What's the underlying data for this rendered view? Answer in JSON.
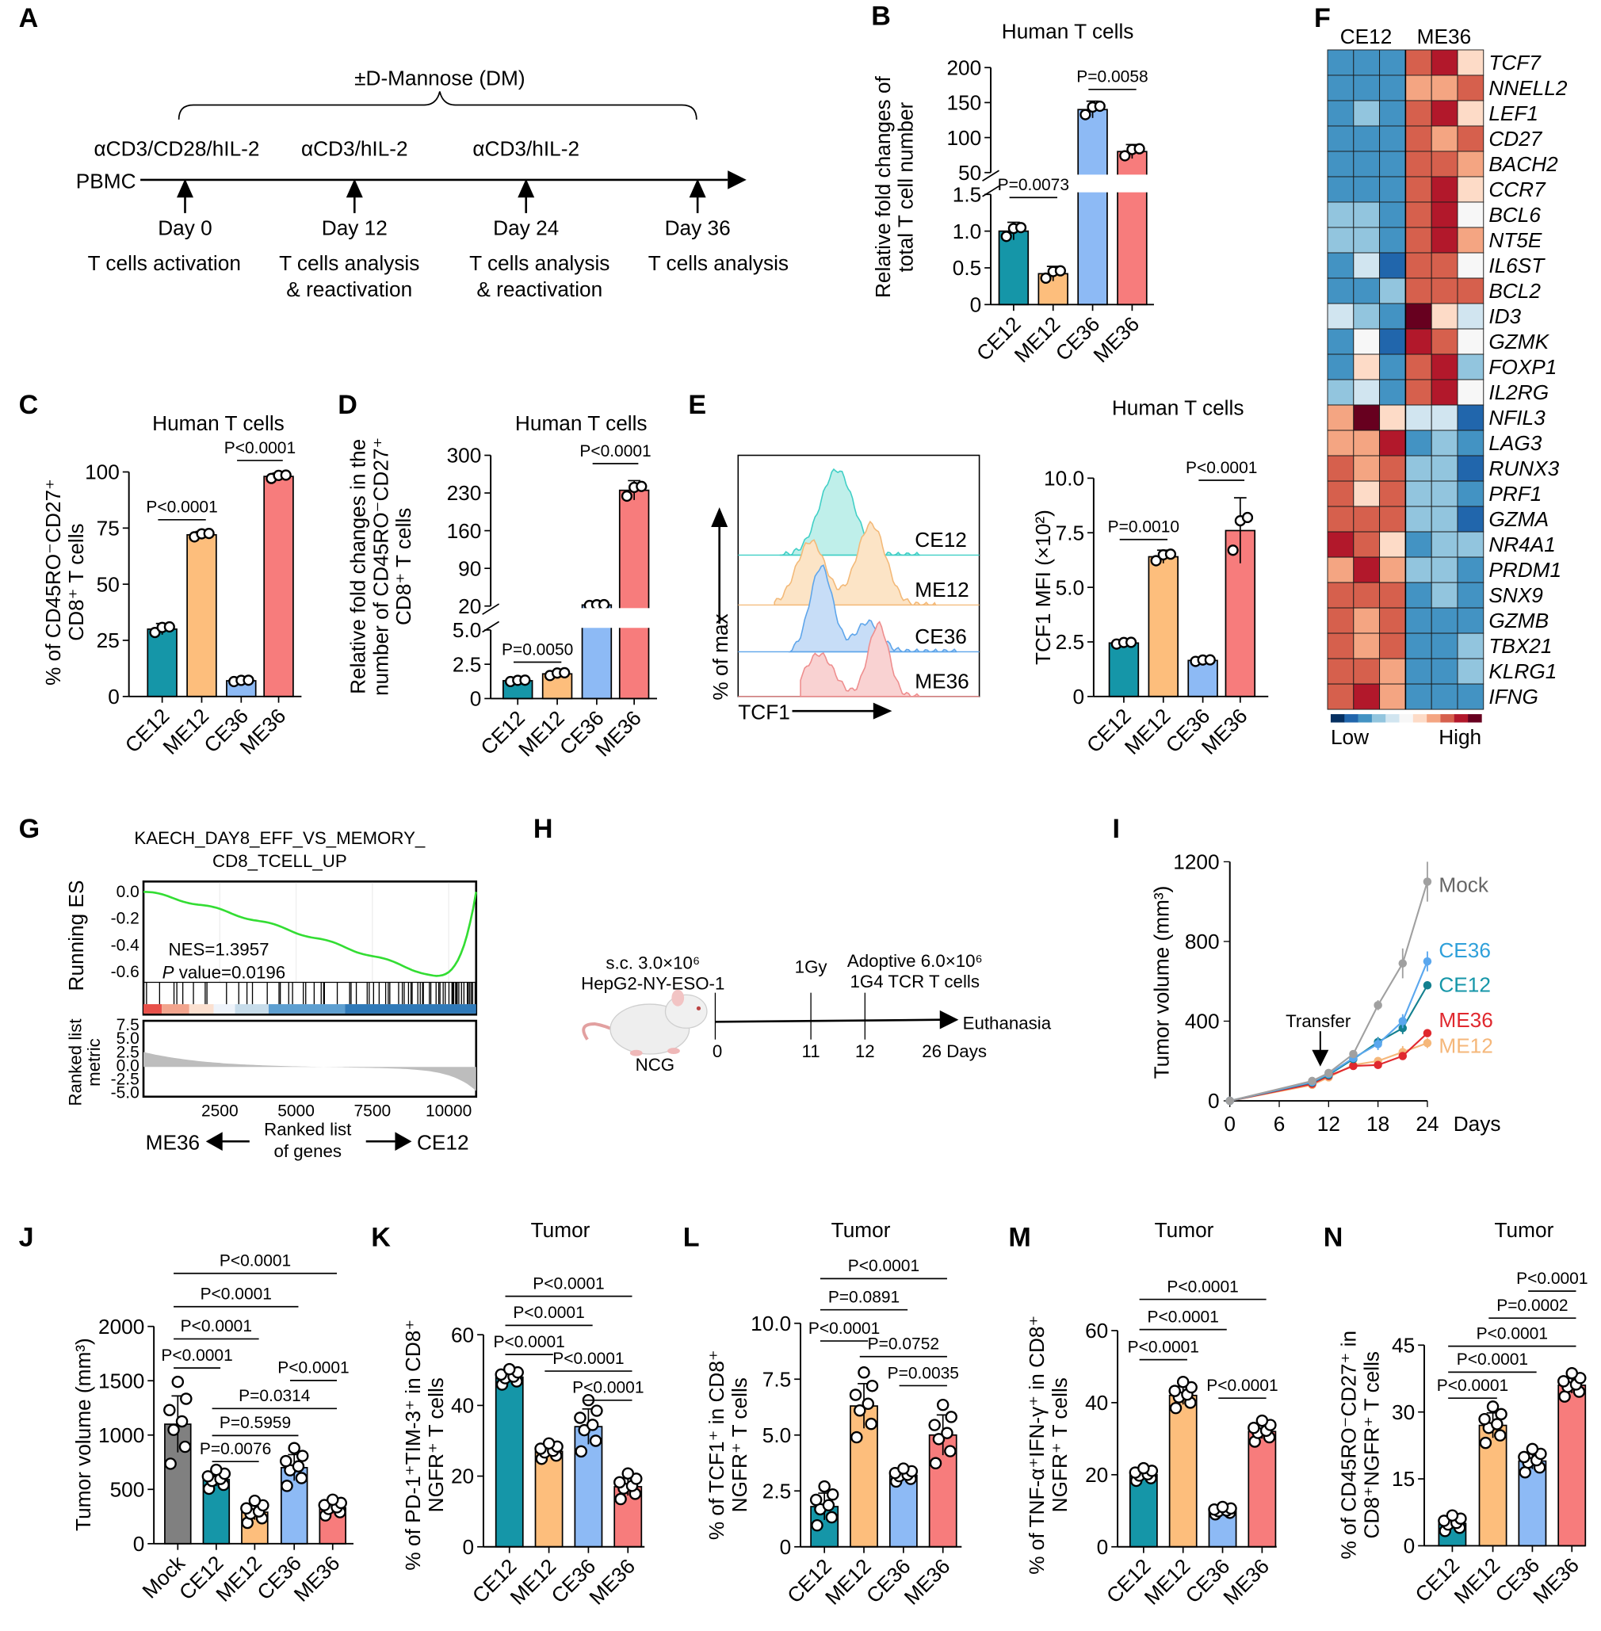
{
  "colors": {
    "CE12": "#1596A8",
    "ME12": "#FDBE7C",
    "CE36": "#8DBAF5",
    "ME36": "#F77C7C",
    "Mock": "#808080",
    "ME36_line": "#E0282E",
    "CE36_line": "#2FA0DA",
    "CE12_line": "#13808F",
    "ME12_line": "#F5B77A",
    "gsea_curve": "#33DD33"
  },
  "panelA": {
    "letter": "A",
    "dm_label": "±D-Mannose (DM)",
    "pbmc": "PBMC",
    "stimuli": [
      "αCD3/CD28/hIL-2",
      "αCD3/hIL-2",
      "αCD3/hIL-2"
    ],
    "days": [
      "Day 0",
      "Day 12",
      "Day 24",
      "Day 36"
    ],
    "events": [
      [
        "T cells activation",
        ""
      ],
      [
        "T cells analysis",
        "& reactivation"
      ],
      [
        "T cells analysis",
        "& reactivation"
      ],
      [
        "T cells analysis",
        ""
      ]
    ]
  },
  "panelE_flow": {
    "letter": "E",
    "samples": [
      "CE12",
      "ME12",
      "CE36",
      "ME36"
    ],
    "y_label": "% of max",
    "x_label": "TCF1"
  },
  "panelF": {
    "letter": "F"
  },
  "panelG": {
    "letter": "G"
  },
  "panelH": {
    "letter": "H",
    "cells": "s.c. 3.0×10⁶",
    "cell_line": "HepG2-NY-ESO-1",
    "irradiation": "1Gy",
    "adoptive": "Adoptive 6.0×10⁶",
    "tcr": "1G4 TCR T cells",
    "endpoint": "Euthanasia",
    "mouse": "NCG",
    "timepoints": [
      "0",
      "11",
      "12",
      "26 Days"
    ]
  },
  "chart_data": [
    {
      "id": "B",
      "letter": "B",
      "type": "bar",
      "title": "Human T cells",
      "ylabel": [
        "Relative fold changes of",
        "total T cell number"
      ],
      "categories": [
        "CE12",
        "ME12",
        "CE36",
        "ME36"
      ],
      "values": [
        1.0,
        0.42,
        140,
        80
      ],
      "sd": [
        0.12,
        0.1,
        12,
        10
      ],
      "n": 3,
      "y_segments": [
        [
          0,
          1.5
        ],
        [
          50,
          200
        ]
      ],
      "yticks": [
        [
          0,
          0.5,
          1.0,
          1.5
        ],
        [
          50,
          100,
          150,
          200
        ]
      ],
      "ytick_labels": [
        [
          "0",
          "0.5",
          "1.0",
          "1.5"
        ],
        [
          "50",
          "100",
          "150",
          "200"
        ]
      ],
      "brackets": [
        {
          "label": "P=0.0073",
          "from": 0,
          "to": 1
        },
        {
          "label": "P=0.0058",
          "from": 2,
          "to": 3
        }
      ]
    },
    {
      "id": "C",
      "letter": "C",
      "type": "bar",
      "title": "Human T cells",
      "ylabel": [
        "% of CD45RO⁻CD27⁺",
        "CD8⁺ T cells"
      ],
      "categories": [
        "CE12",
        "ME12",
        "CE36",
        "ME36"
      ],
      "values": [
        30,
        72,
        7,
        98
      ],
      "sd": [
        2.5,
        1.5,
        0.6,
        1.5
      ],
      "n": 3,
      "y_segments": [
        [
          0,
          100
        ]
      ],
      "yticks": [
        [
          0,
          25,
          50,
          75,
          100
        ]
      ],
      "ytick_labels": [
        [
          "0",
          "25",
          "50",
          "75",
          "100"
        ]
      ],
      "brackets": [
        {
          "label": "P<0.0001",
          "from": 0,
          "to": 1
        },
        {
          "label": "P<0.0001",
          "from": 2,
          "to": 3
        }
      ]
    },
    {
      "id": "D",
      "letter": "D",
      "type": "bar",
      "title": "Human T cells",
      "ylabel": [
        "Relative fold changes in the",
        "number of CD45RO⁻CD27⁺",
        "CD8⁺ T cells"
      ],
      "categories": [
        "CE12",
        "ME12",
        "CE36",
        "ME36"
      ],
      "values": [
        1.3,
        1.8,
        22,
        235
      ],
      "sd": [
        0.1,
        0.2,
        1.5,
        18
      ],
      "n": 3,
      "y_segments": [
        [
          0,
          5
        ],
        [
          20,
          300
        ]
      ],
      "yticks": [
        [
          0,
          2.5,
          5.0
        ],
        [
          20,
          90,
          160,
          230,
          300
        ]
      ],
      "ytick_labels": [
        [
          "0",
          "2.5",
          "5.0"
        ],
        [
          "20",
          "90",
          "160",
          "230",
          "300"
        ]
      ],
      "brackets": [
        {
          "label": "P=0.0050",
          "from": 0,
          "to": 1
        },
        {
          "label": "P<0.0001",
          "from": 2,
          "to": 3
        }
      ]
    },
    {
      "id": "E",
      "letter": "",
      "type": "bar",
      "title": "Human T cells",
      "ylabel": [
        "TCF1 MFI (×10²)"
      ],
      "categories": [
        "CE12",
        "ME12",
        "CE36",
        "ME36"
      ],
      "values": [
        2.45,
        6.4,
        1.65,
        7.6
      ],
      "sd": [
        0.08,
        0.3,
        0.07,
        1.5
      ],
      "n": 3,
      "y_segments": [
        [
          0,
          10
        ]
      ],
      "yticks": [
        [
          0,
          2.5,
          5.0,
          7.5,
          10.0
        ]
      ],
      "ytick_labels": [
        [
          "0",
          "2.5",
          "5.0",
          "7.5",
          "10.0"
        ]
      ],
      "brackets": [
        {
          "label": "P=0.0010",
          "from": 0,
          "to": 1
        },
        {
          "label": "P<0.0001",
          "from": 2,
          "to": 3
        }
      ]
    },
    {
      "id": "F",
      "type": "heatmap",
      "columns": [
        "CE12",
        "ME36"
      ],
      "replicates_per_group": 3,
      "legend_low": "Low",
      "legend_high": "High",
      "levels": 11,
      "palette": [
        "#053061",
        "#2166AC",
        "#4393C3",
        "#92C5DE",
        "#D1E5F0",
        "#F7F7F7",
        "#FDDBC7",
        "#F4A582",
        "#D6604D",
        "#B2182B",
        "#67001F"
      ],
      "genes": [
        "TCF7",
        "NNELL2",
        "LEF1",
        "CD27",
        "BACH2",
        "CCR7",
        "BCL6",
        "NT5E",
        "IL6ST",
        "BCL2",
        "ID3",
        "GZMK",
        "FOXP1",
        "IL2RG",
        "NFIL3",
        "LAG3",
        "RUNX3",
        "PRF1",
        "GZMA",
        "NR4A1",
        "PRDM1",
        "SNX9",
        "GZMB",
        "TBX21",
        "KLRG1",
        "IFNG"
      ],
      "matrix": [
        [
          2,
          2,
          2,
          8,
          9,
          6
        ],
        [
          2,
          2,
          2,
          7,
          7,
          8
        ],
        [
          2,
          3,
          2,
          8,
          9,
          6
        ],
        [
          2,
          2,
          2,
          8,
          7,
          8
        ],
        [
          2,
          2,
          2,
          8,
          8,
          7
        ],
        [
          2,
          2,
          2,
          8,
          9,
          6
        ],
        [
          3,
          3,
          2,
          8,
          9,
          5
        ],
        [
          3,
          3,
          2,
          8,
          9,
          7
        ],
        [
          2,
          4,
          1,
          8,
          8,
          5
        ],
        [
          2,
          2,
          3,
          8,
          8,
          8
        ],
        [
          4,
          3,
          2,
          10,
          6,
          4
        ],
        [
          2,
          5,
          1,
          9,
          8,
          5
        ],
        [
          2,
          6,
          2,
          8,
          9,
          3
        ],
        [
          3,
          4,
          2,
          8,
          9,
          5
        ],
        [
          7,
          10,
          6,
          4,
          4,
          1
        ],
        [
          7,
          7,
          9,
          2,
          3,
          2
        ],
        [
          8,
          7,
          8,
          3,
          3,
          1
        ],
        [
          8,
          6,
          8,
          3,
          3,
          2
        ],
        [
          8,
          8,
          8,
          3,
          3,
          1
        ],
        [
          9,
          8,
          6,
          2,
          3,
          3
        ],
        [
          7,
          9,
          7,
          3,
          3,
          2
        ],
        [
          8,
          8,
          8,
          2,
          3,
          2
        ],
        [
          8,
          7,
          8,
          2,
          2,
          2
        ],
        [
          8,
          7,
          8,
          2,
          2,
          3
        ],
        [
          8,
          8,
          7,
          2,
          2,
          3
        ],
        [
          8,
          9,
          7,
          2,
          2,
          2
        ]
      ]
    },
    {
      "id": "G",
      "type": "line",
      "title": [
        "KAECH_DAY8_EFF_VS_MEMORY_",
        "CD8_TCELL_UP"
      ],
      "ylabel_top": "Running ES",
      "ylabel_bottom": [
        "Ranked list",
        "metric"
      ],
      "nes": "NES=1.3957",
      "pvalue_italic": "P",
      "pvalue_rest": " value=0.0196",
      "es_ticks": [
        "0.0",
        "-0.2",
        "-0.4",
        "-0.6"
      ],
      "es_range": [
        -0.68,
        0.03
      ],
      "metric_ticks": [
        "7.5",
        "5.0",
        "2.5",
        "0.0",
        "-2.5",
        "-5.0"
      ],
      "metric_range": [
        -5.5,
        8.5
      ],
      "xticks": [
        "2500",
        "5000",
        "7500",
        "10000"
      ],
      "xrange": [
        0,
        10900
      ],
      "min_es": -0.63,
      "min_es_rank": 9500,
      "xlabel": [
        "Ranked list",
        "of genes"
      ],
      "left_group": "ME36",
      "right_group": "CE12"
    },
    {
      "id": "I",
      "letter": "I",
      "type": "line",
      "ylabel": "Tumor volume (mm³)",
      "xlabel": "Days",
      "x": [
        0,
        10,
        12,
        15,
        18,
        21,
        24
      ],
      "xticks": [
        "0",
        "6",
        "12",
        "18",
        "24"
      ],
      "yticks": [
        "0",
        "400",
        "800",
        "1200"
      ],
      "ylim": [
        0,
        1200
      ],
      "xlim": [
        0,
        24
      ],
      "annotation": "Transfer",
      "annotation_x": 12,
      "series": [
        {
          "name": "Mock",
          "values": [
            0,
            100,
            140,
            235,
            480,
            690,
            1100
          ],
          "err": [
            0,
            8,
            8,
            15,
            25,
            75,
            100
          ]
        },
        {
          "name": "CE36",
          "values": [
            0,
            95,
            135,
            215,
            285,
            400,
            700
          ],
          "err": [
            0,
            8,
            8,
            12,
            30,
            35,
            50
          ]
        },
        {
          "name": "CE12",
          "values": [
            0,
            92,
            130,
            210,
            295,
            365,
            580
          ],
          "err": [
            0,
            8,
            8,
            12,
            25,
            30,
            20
          ]
        },
        {
          "name": "ME36",
          "values": [
            0,
            85,
            125,
            175,
            180,
            225,
            340
          ],
          "err": [
            0,
            6,
            6,
            10,
            10,
            12,
            12
          ]
        },
        {
          "name": "ME12",
          "values": [
            0,
            80,
            118,
            180,
            200,
            245,
            290
          ],
          "err": [
            0,
            10,
            8,
            12,
            20,
            30,
            25
          ]
        }
      ]
    },
    {
      "id": "J",
      "letter": "J",
      "type": "bar",
      "title": "",
      "ylabel": [
        "Tumor volume (mm³)"
      ],
      "categories": [
        "Mock",
        "CE12",
        "ME12",
        "CE36",
        "ME36"
      ],
      "values": [
        1100,
        590,
        290,
        700,
        330
      ],
      "sd": [
        260,
        60,
        70,
        120,
        50
      ],
      "n": 7,
      "y_segments": [
        [
          0,
          2000
        ]
      ],
      "yticks": [
        [
          0,
          500,
          1000,
          1500,
          2000
        ]
      ],
      "ytick_labels": [
        [
          "0",
          "500",
          "1000",
          "1500",
          "2000"
        ]
      ],
      "brackets": [
        {
          "label": "P<0.0001",
          "from": 0,
          "to": 4
        },
        {
          "label": "P<0.0001",
          "from": 0,
          "to": 3
        },
        {
          "label": "P<0.0001",
          "from": 0,
          "to": 2
        },
        {
          "label": "P<0.0001",
          "from": 0,
          "to": 1
        },
        {
          "label": "P<0.0001",
          "from": 3,
          "to": 4
        },
        {
          "label": "P=0.0314",
          "from": 1,
          "to": 4
        },
        {
          "label": "P=0.5959",
          "from": 1,
          "to": 3
        },
        {
          "label": "P=0.0076",
          "from": 1,
          "to": 2
        }
      ]
    },
    {
      "id": "K",
      "letter": "K",
      "type": "bar",
      "title": "Tumor",
      "ylabel": [
        "% of PD-1⁺TIM-3⁺ in CD8⁺",
        "NGFR⁺ T cells"
      ],
      "categories": [
        "CE12",
        "ME12",
        "CE36",
        "ME36"
      ],
      "values": [
        48,
        27,
        34,
        17
      ],
      "sd": [
        1.5,
        1.5,
        5,
        2.5
      ],
      "n": 7,
      "y_segments": [
        [
          0,
          60
        ]
      ],
      "yticks": [
        [
          0,
          20,
          40,
          60
        ]
      ],
      "ytick_labels": [
        [
          "0",
          "20",
          "40",
          "60"
        ]
      ],
      "brackets": [
        {
          "label": "P<0.0001",
          "from": 0,
          "to": 3
        },
        {
          "label": "P<0.0001",
          "from": 0,
          "to": 2
        },
        {
          "label": "P<0.0001",
          "from": 0,
          "to": 1
        },
        {
          "label": "P<0.0001",
          "from": 1,
          "to": 3
        },
        {
          "label": "P<0.0001",
          "from": 2,
          "to": 3
        }
      ]
    },
    {
      "id": "L",
      "letter": "L",
      "type": "bar",
      "title": "Tumor",
      "ylabel": [
        "% of TCF1⁺ in CD8⁺",
        "NGFR⁺ T cells"
      ],
      "categories": [
        "CE12",
        "ME12",
        "CE36",
        "ME36"
      ],
      "values": [
        1.8,
        6.3,
        3.2,
        5.0
      ],
      "sd": [
        0.6,
        1.0,
        0.2,
        0.9
      ],
      "n": 7,
      "y_segments": [
        [
          0,
          10
        ]
      ],
      "yticks": [
        [
          0,
          2.5,
          5.0,
          7.5,
          10.0
        ]
      ],
      "ytick_labels": [
        [
          "0",
          "2.5",
          "5.0",
          "7.5",
          "10.0"
        ]
      ],
      "brackets": [
        {
          "label": "P<0.0001",
          "from": 0,
          "to": 3
        },
        {
          "label": "P=0.0891",
          "from": 0,
          "to": 2
        },
        {
          "label": "P<0.0001",
          "from": 0,
          "to": 1
        },
        {
          "label": "P=0.0752",
          "from": 1,
          "to": 3
        },
        {
          "label": "P=0.0035",
          "from": 2,
          "to": 3
        }
      ]
    },
    {
      "id": "M",
      "letter": "M",
      "type": "bar",
      "title": "Tumor",
      "ylabel": [
        "% of TNF-α⁺IFN-γ⁺ in CD8⁺",
        "NGFR⁺ T cells"
      ],
      "categories": [
        "CE12",
        "ME12",
        "CE36",
        "ME36"
      ],
      "values": [
        20,
        42,
        10,
        32
      ],
      "sd": [
        1.2,
        2.5,
        0.7,
        2
      ],
      "n": 7,
      "y_segments": [
        [
          0,
          60
        ]
      ],
      "yticks": [
        [
          0,
          20,
          40,
          60
        ]
      ],
      "ytick_labels": [
        [
          "0",
          "20",
          "40",
          "60"
        ]
      ],
      "brackets": [
        {
          "label": "P<0.0001",
          "from": 0,
          "to": 3
        },
        {
          "label": "P<0.0001",
          "from": 0,
          "to": 2
        },
        {
          "label": "P<0.0001",
          "from": 0,
          "to": 1
        },
        {
          "label": "P<0.0001",
          "from": 2,
          "to": 3
        }
      ]
    },
    {
      "id": "N",
      "letter": "N",
      "type": "bar",
      "title": "Tumor",
      "ylabel": [
        "% of CD45RO⁻CD27⁺ in",
        "CD8⁺NGFR⁺ T cells"
      ],
      "categories": [
        "CE12",
        "ME12",
        "CE36",
        "ME36"
      ],
      "values": [
        5,
        27,
        19,
        36
      ],
      "sd": [
        1.2,
        2.8,
        1.8,
        1.8
      ],
      "n": 7,
      "y_segments": [
        [
          0,
          45
        ]
      ],
      "yticks": [
        [
          0,
          15,
          30,
          45
        ]
      ],
      "ytick_labels": [
        [
          "0",
          "15",
          "30",
          "45"
        ]
      ],
      "brackets": [
        {
          "label": "P<0.0001",
          "from": 2,
          "to": 3
        },
        {
          "label": "P=0.0002",
          "from": 1,
          "to": 3
        },
        {
          "label": "P<0.0001",
          "from": 0,
          "to": 3
        },
        {
          "label": "P<0.0001",
          "from": 0,
          "to": 2
        },
        {
          "label": "P<0.0001",
          "from": 0,
          "to": 1
        }
      ]
    }
  ]
}
